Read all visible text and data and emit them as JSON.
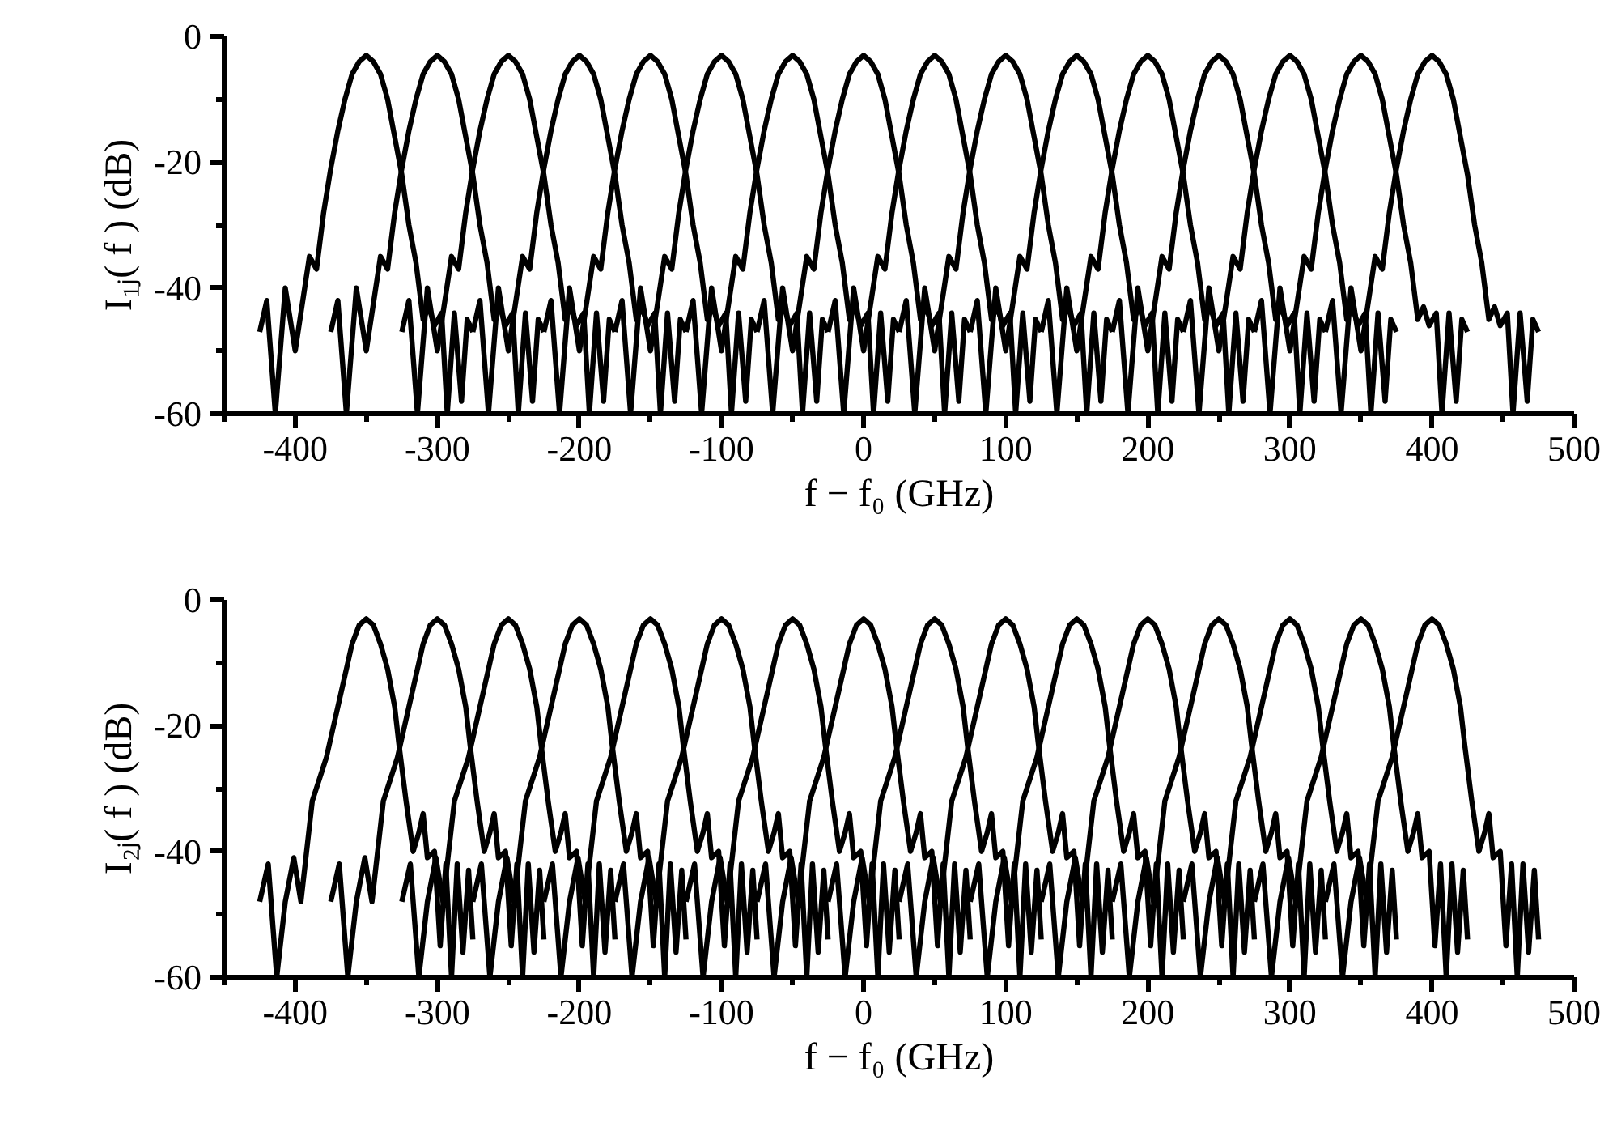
{
  "chart_data": [
    {
      "type": "line",
      "xlabel": "f − f₀ (GHz)",
      "ylabel": "I₁ⱼ( f ) (dB)",
      "xlim": [
        -450,
        500
      ],
      "ylim": [
        -60,
        0
      ],
      "xticks": [
        {
          "value": -450,
          "label": null
        },
        -400,
        {
          "value": -350,
          "label": null
        },
        -300,
        {
          "value": -250,
          "label": null
        },
        -200,
        {
          "value": -150,
          "label": null
        },
        -100,
        {
          "value": -50,
          "label": null
        },
        0,
        {
          "value": 50,
          "label": null
        },
        100,
        {
          "value": 150,
          "label": null
        },
        200,
        {
          "value": 250,
          "label": null
        },
        300,
        {
          "value": 350,
          "label": null
        },
        400,
        {
          "value": 450,
          "label": null
        },
        500
      ],
      "yticks": [
        -60,
        {
          "value": -50,
          "label": null
        },
        -40,
        {
          "value": -30,
          "label": null
        },
        -20,
        {
          "value": -10,
          "label": null
        },
        0
      ],
      "grid": false,
      "marker": "none",
      "line_style": "solid",
      "series": [
        {
          "color": "#000000",
          "x": [
            -425,
            -420,
            -414,
            -407,
            -400,
            -390,
            -385,
            -380,
            -375,
            -370,
            -365,
            -360,
            -355,
            -350,
            -345,
            -340,
            -335,
            -330,
            -325,
            -320,
            -315,
            -310,
            -306,
            -302,
            -297,
            -293,
            -288,
            -283,
            -279,
            -275
          ],
          "values": [
            -47,
            -42,
            -60,
            -40,
            -50,
            -35,
            -37,
            -28,
            -21,
            -15,
            -10,
            -6,
            -4,
            -3,
            -4,
            -6,
            -10,
            -16,
            -22,
            -30,
            -36,
            -45,
            -43,
            -46,
            -44,
            -60,
            -44,
            -58,
            -45,
            -47
          ]
        },
        {
          "color": "#000000",
          "x": [
            -375,
            -370,
            -364,
            -357,
            -350,
            -340,
            -335,
            -330,
            -325,
            -320,
            -315,
            -310,
            -305,
            -300,
            -295,
            -290,
            -285,
            -280,
            -275,
            -270,
            -265,
            -260,
            -256,
            -252,
            -247,
            -243,
            -238,
            -233,
            -229,
            -225
          ],
          "values": [
            -47,
            -42,
            -60,
            -40,
            -50,
            -35,
            -37,
            -28,
            -21,
            -15,
            -10,
            -6,
            -4,
            -3,
            -4,
            -6,
            -10,
            -16,
            -22,
            -30,
            -36,
            -45,
            -43,
            -46,
            -44,
            -60,
            -44,
            -58,
            -45,
            -47
          ]
        },
        {
          "color": "#000000",
          "x": [
            -325,
            -320,
            -314,
            -307,
            -300,
            -290,
            -285,
            -280,
            -275,
            -270,
            -265,
            -260,
            -255,
            -250,
            -245,
            -240,
            -235,
            -230,
            -225,
            -220,
            -215,
            -210,
            -206,
            -202,
            -197,
            -193,
            -188,
            -183,
            -179,
            -175
          ],
          "values": [
            -47,
            -42,
            -60,
            -40,
            -50,
            -35,
            -37,
            -28,
            -21,
            -15,
            -10,
            -6,
            -4,
            -3,
            -4,
            -6,
            -10,
            -16,
            -22,
            -30,
            -36,
            -45,
            -43,
            -46,
            -44,
            -60,
            -44,
            -58,
            -45,
            -47
          ]
        },
        {
          "color": "#000000",
          "x": [
            -275,
            -270,
            -264,
            -257,
            -250,
            -240,
            -235,
            -230,
            -225,
            -220,
            -215,
            -210,
            -205,
            -200,
            -195,
            -190,
            -185,
            -180,
            -175,
            -170,
            -165,
            -160,
            -156,
            -152,
            -147,
            -143,
            -138,
            -133,
            -129,
            -125
          ],
          "values": [
            -47,
            -42,
            -60,
            -40,
            -50,
            -35,
            -37,
            -28,
            -21,
            -15,
            -10,
            -6,
            -4,
            -3,
            -4,
            -6,
            -10,
            -16,
            -22,
            -30,
            -36,
            -45,
            -43,
            -46,
            -44,
            -60,
            -44,
            -58,
            -45,
            -47
          ]
        },
        {
          "color": "#000000",
          "x": [
            -225,
            -220,
            -214,
            -207,
            -200,
            -190,
            -185,
            -180,
            -175,
            -170,
            -165,
            -160,
            -155,
            -150,
            -145,
            -140,
            -135,
            -130,
            -125,
            -120,
            -115,
            -110,
            -106,
            -102,
            -97,
            -93,
            -88,
            -83,
            -79,
            -75
          ],
          "values": [
            -47,
            -42,
            -60,
            -40,
            -50,
            -35,
            -37,
            -28,
            -21,
            -15,
            -10,
            -6,
            -4,
            -3,
            -4,
            -6,
            -10,
            -16,
            -22,
            -30,
            -36,
            -45,
            -43,
            -46,
            -44,
            -60,
            -44,
            -58,
            -45,
            -47
          ]
        },
        {
          "color": "#000000",
          "x": [
            -175,
            -170,
            -164,
            -157,
            -150,
            -140,
            -135,
            -130,
            -125,
            -120,
            -115,
            -110,
            -105,
            -100,
            -95,
            -90,
            -85,
            -80,
            -75,
            -70,
            -65,
            -60,
            -56,
            -52,
            -47,
            -43,
            -38,
            -33,
            -29,
            -25
          ],
          "values": [
            -47,
            -42,
            -60,
            -40,
            -50,
            -35,
            -37,
            -28,
            -21,
            -15,
            -10,
            -6,
            -4,
            -3,
            -4,
            -6,
            -10,
            -16,
            -22,
            -30,
            -36,
            -45,
            -43,
            -46,
            -44,
            -60,
            -44,
            -58,
            -45,
            -47
          ]
        },
        {
          "color": "#000000",
          "x": [
            -125,
            -120,
            -114,
            -107,
            -100,
            -90,
            -85,
            -80,
            -75,
            -70,
            -65,
            -60,
            -55,
            -50,
            -45,
            -40,
            -35,
            -30,
            -25,
            -20,
            -15,
            -10,
            -6,
            -2,
            3,
            7,
            12,
            17,
            21,
            25
          ],
          "values": [
            -47,
            -42,
            -60,
            -40,
            -50,
            -35,
            -37,
            -28,
            -21,
            -15,
            -10,
            -6,
            -4,
            -3,
            -4,
            -6,
            -10,
            -16,
            -22,
            -30,
            -36,
            -45,
            -43,
            -46,
            -44,
            -60,
            -44,
            -58,
            -45,
            -47
          ]
        },
        {
          "color": "#000000",
          "x": [
            -75,
            -70,
            -64,
            -57,
            -50,
            -40,
            -35,
            -30,
            -25,
            -20,
            -15,
            -10,
            -5,
            0,
            5,
            10,
            15,
            20,
            25,
            30,
            35,
            40,
            44,
            48,
            53,
            57,
            62,
            67,
            71,
            75
          ],
          "values": [
            -47,
            -42,
            -60,
            -40,
            -50,
            -35,
            -37,
            -28,
            -21,
            -15,
            -10,
            -6,
            -4,
            -3,
            -4,
            -6,
            -10,
            -16,
            -22,
            -30,
            -36,
            -45,
            -43,
            -46,
            -44,
            -60,
            -44,
            -58,
            -45,
            -47
          ]
        },
        {
          "color": "#000000",
          "x": [
            -25,
            -20,
            -14,
            -7,
            0,
            10,
            15,
            20,
            25,
            30,
            35,
            40,
            45,
            50,
            55,
            60,
            65,
            70,
            75,
            80,
            85,
            90,
            94,
            98,
            103,
            107,
            112,
            117,
            121,
            125
          ],
          "values": [
            -47,
            -42,
            -60,
            -40,
            -50,
            -35,
            -37,
            -28,
            -21,
            -15,
            -10,
            -6,
            -4,
            -3,
            -4,
            -6,
            -10,
            -16,
            -22,
            -30,
            -36,
            -45,
            -43,
            -46,
            -44,
            -60,
            -44,
            -58,
            -45,
            -47
          ]
        },
        {
          "color": "#000000",
          "x": [
            25,
            30,
            36,
            43,
            50,
            60,
            65,
            70,
            75,
            80,
            85,
            90,
            95,
            100,
            105,
            110,
            115,
            120,
            125,
            130,
            135,
            140,
            144,
            148,
            153,
            157,
            162,
            167,
            171,
            175
          ],
          "values": [
            -47,
            -42,
            -60,
            -40,
            -50,
            -35,
            -37,
            -28,
            -21,
            -15,
            -10,
            -6,
            -4,
            -3,
            -4,
            -6,
            -10,
            -16,
            -22,
            -30,
            -36,
            -45,
            -43,
            -46,
            -44,
            -60,
            -44,
            -58,
            -45,
            -47
          ]
        },
        {
          "color": "#000000",
          "x": [
            75,
            80,
            86,
            93,
            100,
            110,
            115,
            120,
            125,
            130,
            135,
            140,
            145,
            150,
            155,
            160,
            165,
            170,
            175,
            180,
            185,
            190,
            194,
            198,
            203,
            207,
            212,
            217,
            221,
            225
          ],
          "values": [
            -47,
            -42,
            -60,
            -40,
            -50,
            -35,
            -37,
            -28,
            -21,
            -15,
            -10,
            -6,
            -4,
            -3,
            -4,
            -6,
            -10,
            -16,
            -22,
            -30,
            -36,
            -45,
            -43,
            -46,
            -44,
            -60,
            -44,
            -58,
            -45,
            -47
          ]
        },
        {
          "color": "#000000",
          "x": [
            125,
            130,
            136,
            143,
            150,
            160,
            165,
            170,
            175,
            180,
            185,
            190,
            195,
            200,
            205,
            210,
            215,
            220,
            225,
            230,
            235,
            240,
            244,
            248,
            253,
            257,
            262,
            267,
            271,
            275
          ],
          "values": [
            -47,
            -42,
            -60,
            -40,
            -50,
            -35,
            -37,
            -28,
            -21,
            -15,
            -10,
            -6,
            -4,
            -3,
            -4,
            -6,
            -10,
            -16,
            -22,
            -30,
            -36,
            -45,
            -43,
            -46,
            -44,
            -60,
            -44,
            -58,
            -45,
            -47
          ]
        },
        {
          "color": "#000000",
          "x": [
            175,
            180,
            186,
            193,
            200,
            210,
            215,
            220,
            225,
            230,
            235,
            240,
            245,
            250,
            255,
            260,
            265,
            270,
            275,
            280,
            285,
            290,
            294,
            298,
            303,
            307,
            312,
            317,
            321,
            325
          ],
          "values": [
            -47,
            -42,
            -60,
            -40,
            -50,
            -35,
            -37,
            -28,
            -21,
            -15,
            -10,
            -6,
            -4,
            -3,
            -4,
            -6,
            -10,
            -16,
            -22,
            -30,
            -36,
            -45,
            -43,
            -46,
            -44,
            -60,
            -44,
            -58,
            -45,
            -47
          ]
        },
        {
          "color": "#000000",
          "x": [
            225,
            230,
            236,
            243,
            250,
            260,
            265,
            270,
            275,
            280,
            285,
            290,
            295,
            300,
            305,
            310,
            315,
            320,
            325,
            330,
            335,
            340,
            344,
            348,
            353,
            357,
            362,
            367,
            371,
            375
          ],
          "values": [
            -47,
            -42,
            -60,
            -40,
            -50,
            -35,
            -37,
            -28,
            -21,
            -15,
            -10,
            -6,
            -4,
            -3,
            -4,
            -6,
            -10,
            -16,
            -22,
            -30,
            -36,
            -45,
            -43,
            -46,
            -44,
            -60,
            -44,
            -58,
            -45,
            -47
          ]
        },
        {
          "color": "#000000",
          "x": [
            275,
            280,
            286,
            293,
            300,
            310,
            315,
            320,
            325,
            330,
            335,
            340,
            345,
            350,
            355,
            360,
            365,
            370,
            375,
            380,
            385,
            390,
            394,
            398,
            403,
            407,
            412,
            417,
            421,
            425
          ],
          "values": [
            -47,
            -42,
            -60,
            -40,
            -50,
            -35,
            -37,
            -28,
            -21,
            -15,
            -10,
            -6,
            -4,
            -3,
            -4,
            -6,
            -10,
            -16,
            -22,
            -30,
            -36,
            -45,
            -43,
            -46,
            -44,
            -60,
            -44,
            -58,
            -45,
            -47
          ]
        },
        {
          "color": "#000000",
          "x": [
            325,
            330,
            336,
            343,
            350,
            360,
            365,
            370,
            375,
            380,
            385,
            390,
            395,
            400,
            405,
            410,
            415,
            420,
            425,
            430,
            435,
            440,
            444,
            448,
            453,
            457,
            462,
            467,
            471,
            475
          ],
          "values": [
            -47,
            -42,
            -60,
            -40,
            -50,
            -35,
            -37,
            -28,
            -21,
            -15,
            -10,
            -6,
            -4,
            -3,
            -4,
            -6,
            -10,
            -16,
            -22,
            -30,
            -36,
            -45,
            -43,
            -46,
            -44,
            -60,
            -44,
            -58,
            -45,
            -47
          ]
        }
      ]
    },
    {
      "type": "line",
      "xlabel": "f − f₀ (GHz)",
      "ylabel": "I₂ⱼ( f ) (dB)",
      "xlim": [
        -450,
        500
      ],
      "ylim": [
        -60,
        0
      ],
      "xticks": [
        {
          "value": -450,
          "label": null
        },
        -400,
        {
          "value": -350,
          "label": null
        },
        -300,
        {
          "value": -250,
          "label": null
        },
        -200,
        {
          "value": -150,
          "label": null
        },
        -100,
        {
          "value": -50,
          "label": null
        },
        0,
        {
          "value": 50,
          "label": null
        },
        100,
        {
          "value": 150,
          "label": null
        },
        200,
        {
          "value": 250,
          "label": null
        },
        300,
        {
          "value": 350,
          "label": null
        },
        400,
        {
          "value": 450,
          "label": null
        },
        500
      ],
      "yticks": [
        -60,
        {
          "value": -50,
          "label": null
        },
        -40,
        {
          "value": -30,
          "label": null
        },
        -20,
        {
          "value": -10,
          "label": null
        },
        0
      ],
      "grid": false,
      "marker": "none",
      "line_style": "solid",
      "series": [
        {
          "color": "#000000",
          "x": [
            -425,
            -419,
            -413,
            -407,
            -401,
            -396,
            -388,
            -378,
            -365,
            -360,
            -355,
            -350,
            -345,
            -340,
            -335,
            -330,
            -327,
            -322,
            -317,
            -313,
            -310,
            -307,
            -302,
            -298,
            -294,
            -290,
            -286,
            -282,
            -278,
            -275
          ],
          "values": [
            -48,
            -42,
            -60,
            -48,
            -41,
            -48,
            -32,
            -25,
            -12,
            -7,
            -4,
            -3,
            -4,
            -7,
            -11,
            -17,
            -23,
            -32,
            -40,
            -37,
            -34,
            -41,
            -40,
            -55,
            -42,
            -60,
            -42,
            -56,
            -43,
            -54
          ]
        },
        {
          "color": "#000000",
          "x": [
            -375,
            -369,
            -363,
            -357,
            -351,
            -346,
            -338,
            -328,
            -315,
            -310,
            -305,
            -300,
            -295,
            -290,
            -285,
            -280,
            -277,
            -272,
            -267,
            -263,
            -260,
            -257,
            -252,
            -248,
            -244,
            -240,
            -236,
            -232,
            -228,
            -225
          ],
          "values": [
            -48,
            -42,
            -60,
            -48,
            -41,
            -48,
            -32,
            -25,
            -12,
            -7,
            -4,
            -3,
            -4,
            -7,
            -11,
            -17,
            -23,
            -32,
            -40,
            -37,
            -34,
            -41,
            -40,
            -55,
            -42,
            -60,
            -42,
            -56,
            -43,
            -54
          ]
        },
        {
          "color": "#000000",
          "x": [
            -325,
            -319,
            -313,
            -307,
            -301,
            -296,
            -288,
            -278,
            -265,
            -260,
            -255,
            -250,
            -245,
            -240,
            -235,
            -230,
            -227,
            -222,
            -217,
            -213,
            -210,
            -207,
            -202,
            -198,
            -194,
            -190,
            -186,
            -182,
            -178,
            -175
          ],
          "values": [
            -48,
            -42,
            -60,
            -48,
            -41,
            -48,
            -32,
            -25,
            -12,
            -7,
            -4,
            -3,
            -4,
            -7,
            -11,
            -17,
            -23,
            -32,
            -40,
            -37,
            -34,
            -41,
            -40,
            -55,
            -42,
            -60,
            -42,
            -56,
            -43,
            -54
          ]
        },
        {
          "color": "#000000",
          "x": [
            -275,
            -269,
            -263,
            -257,
            -251,
            -246,
            -238,
            -228,
            -215,
            -210,
            -205,
            -200,
            -195,
            -190,
            -185,
            -180,
            -177,
            -172,
            -167,
            -163,
            -160,
            -157,
            -152,
            -148,
            -144,
            -140,
            -136,
            -132,
            -128,
            -125
          ],
          "values": [
            -48,
            -42,
            -60,
            -48,
            -41,
            -48,
            -32,
            -25,
            -12,
            -7,
            -4,
            -3,
            -4,
            -7,
            -11,
            -17,
            -23,
            -32,
            -40,
            -37,
            -34,
            -41,
            -40,
            -55,
            -42,
            -60,
            -42,
            -56,
            -43,
            -54
          ]
        },
        {
          "color": "#000000",
          "x": [
            -225,
            -219,
            -213,
            -207,
            -201,
            -196,
            -188,
            -178,
            -165,
            -160,
            -155,
            -150,
            -145,
            -140,
            -135,
            -130,
            -127,
            -122,
            -117,
            -113,
            -110,
            -107,
            -102,
            -98,
            -94,
            -90,
            -86,
            -82,
            -78,
            -75
          ],
          "values": [
            -48,
            -42,
            -60,
            -48,
            -41,
            -48,
            -32,
            -25,
            -12,
            -7,
            -4,
            -3,
            -4,
            -7,
            -11,
            -17,
            -23,
            -32,
            -40,
            -37,
            -34,
            -41,
            -40,
            -55,
            -42,
            -60,
            -42,
            -56,
            -43,
            -54
          ]
        },
        {
          "color": "#000000",
          "x": [
            -175,
            -169,
            -163,
            -157,
            -151,
            -146,
            -138,
            -128,
            -115,
            -110,
            -105,
            -100,
            -95,
            -90,
            -85,
            -80,
            -77,
            -72,
            -67,
            -63,
            -60,
            -57,
            -52,
            -48,
            -44,
            -40,
            -36,
            -32,
            -28,
            -25
          ],
          "values": [
            -48,
            -42,
            -60,
            -48,
            -41,
            -48,
            -32,
            -25,
            -12,
            -7,
            -4,
            -3,
            -4,
            -7,
            -11,
            -17,
            -23,
            -32,
            -40,
            -37,
            -34,
            -41,
            -40,
            -55,
            -42,
            -60,
            -42,
            -56,
            -43,
            -54
          ]
        },
        {
          "color": "#000000",
          "x": [
            -125,
            -119,
            -113,
            -107,
            -101,
            -96,
            -88,
            -78,
            -65,
            -60,
            -55,
            -50,
            -45,
            -40,
            -35,
            -30,
            -27,
            -22,
            -17,
            -13,
            -10,
            -7,
            -2,
            2,
            6,
            10,
            14,
            18,
            22,
            25
          ],
          "values": [
            -48,
            -42,
            -60,
            -48,
            -41,
            -48,
            -32,
            -25,
            -12,
            -7,
            -4,
            -3,
            -4,
            -7,
            -11,
            -17,
            -23,
            -32,
            -40,
            -37,
            -34,
            -41,
            -40,
            -55,
            -42,
            -60,
            -42,
            -56,
            -43,
            -54
          ]
        },
        {
          "color": "#000000",
          "x": [
            -75,
            -69,
            -63,
            -57,
            -51,
            -46,
            -38,
            -28,
            -15,
            -10,
            -5,
            0,
            5,
            10,
            15,
            20,
            23,
            28,
            33,
            37,
            40,
            43,
            48,
            52,
            56,
            60,
            64,
            68,
            72,
            75
          ],
          "values": [
            -48,
            -42,
            -60,
            -48,
            -41,
            -48,
            -32,
            -25,
            -12,
            -7,
            -4,
            -3,
            -4,
            -7,
            -11,
            -17,
            -23,
            -32,
            -40,
            -37,
            -34,
            -41,
            -40,
            -55,
            -42,
            -60,
            -42,
            -56,
            -43,
            -54
          ]
        },
        {
          "color": "#000000",
          "x": [
            -25,
            -19,
            -13,
            -7,
            -1,
            4,
            12,
            22,
            35,
            40,
            45,
            50,
            55,
            60,
            65,
            70,
            73,
            78,
            83,
            87,
            90,
            93,
            98,
            102,
            106,
            110,
            114,
            118,
            122,
            125
          ],
          "values": [
            -48,
            -42,
            -60,
            -48,
            -41,
            -48,
            -32,
            -25,
            -12,
            -7,
            -4,
            -3,
            -4,
            -7,
            -11,
            -17,
            -23,
            -32,
            -40,
            -37,
            -34,
            -41,
            -40,
            -55,
            -42,
            -60,
            -42,
            -56,
            -43,
            -54
          ]
        },
        {
          "color": "#000000",
          "x": [
            25,
            31,
            37,
            43,
            49,
            54,
            62,
            72,
            85,
            90,
            95,
            100,
            105,
            110,
            115,
            120,
            123,
            128,
            133,
            137,
            140,
            143,
            148,
            152,
            156,
            160,
            164,
            168,
            172,
            175
          ],
          "values": [
            -48,
            -42,
            -60,
            -48,
            -41,
            -48,
            -32,
            -25,
            -12,
            -7,
            -4,
            -3,
            -4,
            -7,
            -11,
            -17,
            -23,
            -32,
            -40,
            -37,
            -34,
            -41,
            -40,
            -55,
            -42,
            -60,
            -42,
            -56,
            -43,
            -54
          ]
        },
        {
          "color": "#000000",
          "x": [
            75,
            81,
            87,
            93,
            99,
            104,
            112,
            122,
            135,
            140,
            145,
            150,
            155,
            160,
            165,
            170,
            173,
            178,
            183,
            187,
            190,
            193,
            198,
            202,
            206,
            210,
            214,
            218,
            222,
            225
          ],
          "values": [
            -48,
            -42,
            -60,
            -48,
            -41,
            -48,
            -32,
            -25,
            -12,
            -7,
            -4,
            -3,
            -4,
            -7,
            -11,
            -17,
            -23,
            -32,
            -40,
            -37,
            -34,
            -41,
            -40,
            -55,
            -42,
            -60,
            -42,
            -56,
            -43,
            -54
          ]
        },
        {
          "color": "#000000",
          "x": [
            125,
            131,
            137,
            143,
            149,
            154,
            162,
            172,
            185,
            190,
            195,
            200,
            205,
            210,
            215,
            220,
            223,
            228,
            233,
            237,
            240,
            243,
            248,
            252,
            256,
            260,
            264,
            268,
            272,
            275
          ],
          "values": [
            -48,
            -42,
            -60,
            -48,
            -41,
            -48,
            -32,
            -25,
            -12,
            -7,
            -4,
            -3,
            -4,
            -7,
            -11,
            -17,
            -23,
            -32,
            -40,
            -37,
            -34,
            -41,
            -40,
            -55,
            -42,
            -60,
            -42,
            -56,
            -43,
            -54
          ]
        },
        {
          "color": "#000000",
          "x": [
            175,
            181,
            187,
            193,
            199,
            204,
            212,
            222,
            235,
            240,
            245,
            250,
            255,
            260,
            265,
            270,
            273,
            278,
            283,
            287,
            290,
            293,
            298,
            302,
            306,
            310,
            314,
            318,
            322,
            325
          ],
          "values": [
            -48,
            -42,
            -60,
            -48,
            -41,
            -48,
            -32,
            -25,
            -12,
            -7,
            -4,
            -3,
            -4,
            -7,
            -11,
            -17,
            -23,
            -32,
            -40,
            -37,
            -34,
            -41,
            -40,
            -55,
            -42,
            -60,
            -42,
            -56,
            -43,
            -54
          ]
        },
        {
          "color": "#000000",
          "x": [
            225,
            231,
            237,
            243,
            249,
            254,
            262,
            272,
            285,
            290,
            295,
            300,
            305,
            310,
            315,
            320,
            323,
            328,
            333,
            337,
            340,
            343,
            348,
            352,
            356,
            360,
            364,
            368,
            372,
            375
          ],
          "values": [
            -48,
            -42,
            -60,
            -48,
            -41,
            -48,
            -32,
            -25,
            -12,
            -7,
            -4,
            -3,
            -4,
            -7,
            -11,
            -17,
            -23,
            -32,
            -40,
            -37,
            -34,
            -41,
            -40,
            -55,
            -42,
            -60,
            -42,
            -56,
            -43,
            -54
          ]
        },
        {
          "color": "#000000",
          "x": [
            275,
            281,
            287,
            293,
            299,
            304,
            312,
            322,
            335,
            340,
            345,
            350,
            355,
            360,
            365,
            370,
            373,
            378,
            383,
            387,
            390,
            393,
            398,
            402,
            406,
            410,
            414,
            418,
            422,
            425
          ],
          "values": [
            -48,
            -42,
            -60,
            -48,
            -41,
            -48,
            -32,
            -25,
            -12,
            -7,
            -4,
            -3,
            -4,
            -7,
            -11,
            -17,
            -23,
            -32,
            -40,
            -37,
            -34,
            -41,
            -40,
            -55,
            -42,
            -60,
            -42,
            -56,
            -43,
            -54
          ]
        },
        {
          "color": "#000000",
          "x": [
            325,
            331,
            337,
            343,
            349,
            354,
            362,
            372,
            385,
            390,
            395,
            400,
            405,
            410,
            415,
            420,
            423,
            428,
            433,
            437,
            440,
            443,
            448,
            452,
            456,
            460,
            464,
            468,
            472,
            475
          ],
          "values": [
            -48,
            -42,
            -60,
            -48,
            -41,
            -48,
            -32,
            -25,
            -12,
            -7,
            -4,
            -3,
            -4,
            -7,
            -11,
            -17,
            -23,
            -32,
            -40,
            -37,
            -34,
            -41,
            -40,
            -55,
            -42,
            -60,
            -42,
            -56,
            -43,
            -54
          ]
        }
      ]
    }
  ]
}
